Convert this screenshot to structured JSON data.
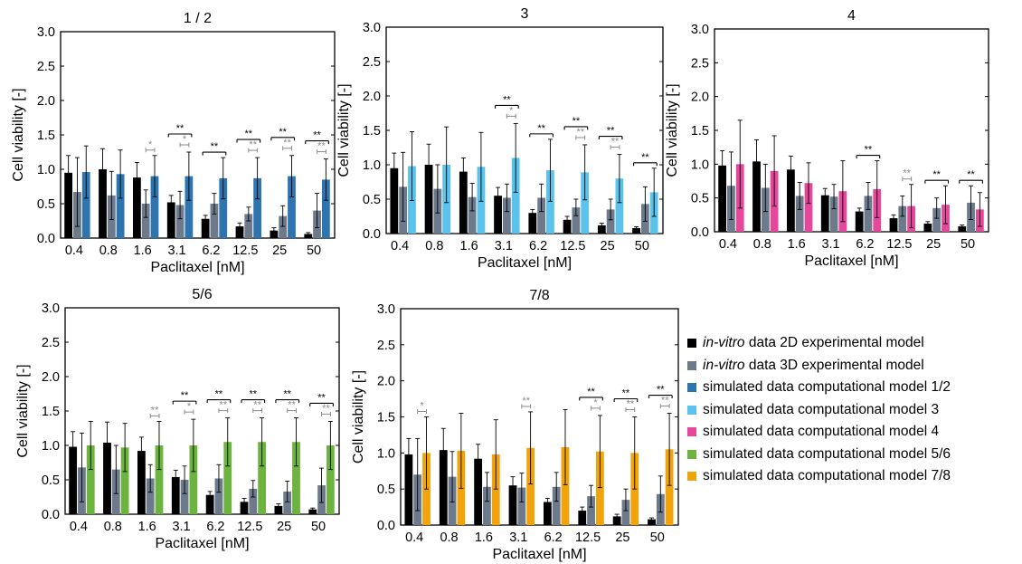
{
  "colors": {
    "vitro2d": "#000000",
    "vitro3d": "#6c7a8c",
    "model12": "#2e75b0",
    "model3": "#5bc2ec",
    "model4": "#e3489a",
    "model56": "#6db33f",
    "model78": "#f0a30a",
    "sig_gray": "#8a8a8a"
  },
  "legend": {
    "items": [
      {
        "em": "in-vitro",
        "text": " data 2D experimental model",
        "color": "#000000"
      },
      {
        "em": "in-vitro",
        "text": " data 3D experimental model",
        "color": "#6c7a8c"
      },
      {
        "em": "",
        "text": "simulated data computational model 1/2",
        "color": "#2e75b0"
      },
      {
        "em": "",
        "text": "simulated data computational model 3",
        "color": "#5bc2ec"
      },
      {
        "em": "",
        "text": "simulated data computational model  4",
        "color": "#e3489a"
      },
      {
        "em": "",
        "text": "simulated data computational model  5/6",
        "color": "#6db33f"
      },
      {
        "em": "",
        "text": "simulated data computational model  7/8",
        "color": "#f0a30a"
      }
    ]
  },
  "chart_data": [
    {
      "type": "bar",
      "title": "1 / 2",
      "xlabel": "Paclitaxel [nM]",
      "ylabel": "Cell viability [-]",
      "ylim": [
        0,
        3.0
      ],
      "yticks": [
        "0.0",
        "0.5",
        "1.0",
        "1.5",
        "2.0",
        "2.5",
        "3.0"
      ],
      "categories": [
        "0.4",
        "0.8",
        "1.6",
        "3.1",
        "6.2",
        "12.5",
        "25",
        "50"
      ],
      "model_color": "#2e75b0",
      "series": [
        {
          "name": "in-vitro data 2D experimental model",
          "values": [
            0.95,
            1.0,
            0.88,
            0.52,
            0.28,
            0.17,
            0.11,
            0.06
          ],
          "errors": [
            0.25,
            0.3,
            0.22,
            0.1,
            0.05,
            0.05,
            0.04,
            0.02
          ]
        },
        {
          "name": "in-vitro data 3D experimental model",
          "values": [
            0.67,
            0.62,
            0.5,
            0.48,
            0.5,
            0.35,
            0.32,
            0.4
          ],
          "errors": [
            0.5,
            0.35,
            0.2,
            0.2,
            0.15,
            0.1,
            0.15,
            0.25
          ]
        },
        {
          "name": "simulated data computational model 1/2",
          "values": [
            0.96,
            0.93,
            0.9,
            0.9,
            0.87,
            0.87,
            0.9,
            0.85
          ],
          "errors": [
            0.38,
            0.35,
            0.3,
            0.35,
            0.3,
            0.3,
            0.3,
            0.3
          ]
        }
      ],
      "annotations": [
        {
          "i": 2,
          "black": "",
          "gray": "*"
        },
        {
          "i": 3,
          "black": "**",
          "gray": "*"
        },
        {
          "i": 4,
          "black": "**",
          "gray": ""
        },
        {
          "i": 5,
          "black": "**",
          "gray": "**"
        },
        {
          "i": 6,
          "black": "**",
          "gray": "**"
        },
        {
          "i": 7,
          "black": "**",
          "gray": "**"
        }
      ]
    },
    {
      "type": "bar",
      "title": "3",
      "xlabel": "Paclitaxel [nM]",
      "ylabel": "Cell viability [-]",
      "ylim": [
        0,
        3.0
      ],
      "yticks": [
        "0.0",
        "0.5",
        "1.0",
        "1.5",
        "2.0",
        "2.5",
        "3.0"
      ],
      "categories": [
        "0.4",
        "0.8",
        "1.6",
        "3.1",
        "6.2",
        "12.5",
        "25",
        "50"
      ],
      "model_color": "#5bc2ec",
      "series": [
        {
          "name": "in-vitro data 2D experimental model",
          "values": [
            0.95,
            1.0,
            0.9,
            0.55,
            0.3,
            0.2,
            0.12,
            0.08
          ],
          "errors": [
            0.22,
            0.3,
            0.2,
            0.12,
            0.05,
            0.05,
            0.03,
            0.02
          ]
        },
        {
          "name": "in-vitro data 3D experimental model",
          "values": [
            0.68,
            0.65,
            0.53,
            0.52,
            0.52,
            0.38,
            0.35,
            0.43
          ],
          "errors": [
            0.5,
            0.35,
            0.2,
            0.2,
            0.2,
            0.12,
            0.15,
            0.25
          ]
        },
        {
          "name": "simulated data computational model 3",
          "values": [
            0.98,
            1.0,
            0.97,
            1.1,
            0.92,
            0.89,
            0.8,
            0.6
          ],
          "errors": [
            0.5,
            0.55,
            0.5,
            0.5,
            0.45,
            0.4,
            0.35,
            0.35
          ]
        }
      ],
      "annotations": [
        {
          "i": 3,
          "black": "**",
          "gray": "*"
        },
        {
          "i": 4,
          "black": "**",
          "gray": ""
        },
        {
          "i": 5,
          "black": "**",
          "gray": "**"
        },
        {
          "i": 6,
          "black": "**",
          "gray": "**"
        },
        {
          "i": 7,
          "black": "**",
          "gray": ""
        }
      ]
    },
    {
      "type": "bar",
      "title": "4",
      "xlabel": "Paclitaxel [nM]",
      "ylabel": "Cell viability [-]",
      "ylim": [
        0,
        3.0
      ],
      "yticks": [
        "0.0",
        "0.5",
        "1.0",
        "1.5",
        "2.0",
        "2.5",
        "3.0"
      ],
      "categories": [
        "0.4",
        "0.8",
        "1.6",
        "3.1",
        "6.2",
        "12.5",
        "25",
        "50"
      ],
      "model_color": "#e3489a",
      "series": [
        {
          "name": "in-vitro data 2D experimental model",
          "values": [
            0.98,
            1.04,
            0.92,
            0.54,
            0.3,
            0.2,
            0.12,
            0.08
          ],
          "errors": [
            0.22,
            0.32,
            0.2,
            0.1,
            0.05,
            0.05,
            0.03,
            0.02
          ]
        },
        {
          "name": "in-vitro data 3D experimental model",
          "values": [
            0.68,
            0.65,
            0.53,
            0.52,
            0.53,
            0.38,
            0.35,
            0.43
          ],
          "errors": [
            0.5,
            0.35,
            0.2,
            0.18,
            0.2,
            0.15,
            0.15,
            0.25
          ]
        },
        {
          "name": "simulated data computational model  4",
          "values": [
            1.0,
            0.9,
            0.72,
            0.6,
            0.63,
            0.38,
            0.4,
            0.33
          ],
          "errors": [
            0.65,
            0.52,
            0.3,
            0.45,
            0.42,
            0.32,
            0.28,
            0.25
          ]
        }
      ],
      "annotations": [
        {
          "i": 4,
          "black": "**",
          "gray": ""
        },
        {
          "i": 5,
          "black": "",
          "gray": "**"
        },
        {
          "i": 6,
          "black": "**",
          "gray": ""
        },
        {
          "i": 7,
          "black": "**",
          "gray": ""
        }
      ]
    },
    {
      "type": "bar",
      "title": "5/6",
      "xlabel": "Paclitaxel [nM]",
      "ylabel": "Cell viability [-]",
      "ylim": [
        0,
        3.0
      ],
      "yticks": [
        "0.0",
        "0.5",
        "1.0",
        "1.5",
        "2.0",
        "2.5",
        "3.0"
      ],
      "categories": [
        "0.4",
        "0.8",
        "1.6",
        "3.1",
        "6.2",
        "12.5",
        "25",
        "50"
      ],
      "model_color": "#6db33f",
      "series": [
        {
          "name": "in-vitro data 2D experimental model",
          "values": [
            0.98,
            1.04,
            0.92,
            0.54,
            0.28,
            0.18,
            0.12,
            0.07
          ],
          "errors": [
            0.22,
            0.3,
            0.2,
            0.1,
            0.05,
            0.05,
            0.03,
            0.02
          ]
        },
        {
          "name": "in-vitro data 3D experimental model",
          "values": [
            0.68,
            0.65,
            0.52,
            0.5,
            0.52,
            0.37,
            0.33,
            0.42
          ],
          "errors": [
            0.5,
            0.35,
            0.2,
            0.2,
            0.2,
            0.12,
            0.15,
            0.25
          ]
        },
        {
          "name": "simulated data computational model  5/6",
          "values": [
            1.0,
            0.97,
            1.0,
            1.0,
            1.05,
            1.05,
            1.05,
            1.0
          ],
          "errors": [
            0.35,
            0.35,
            0.35,
            0.38,
            0.35,
            0.35,
            0.35,
            0.35
          ]
        }
      ],
      "annotations": [
        {
          "i": 2,
          "black": "",
          "gray": "**"
        },
        {
          "i": 3,
          "black": "**",
          "gray": "*"
        },
        {
          "i": 4,
          "black": "**",
          "gray": "**"
        },
        {
          "i": 5,
          "black": "**",
          "gray": "**"
        },
        {
          "i": 6,
          "black": "**",
          "gray": "**"
        },
        {
          "i": 7,
          "black": "**",
          "gray": "**"
        }
      ]
    },
    {
      "type": "bar",
      "title": "7/8",
      "xlabel": "Paclitaxel [nM]",
      "ylabel": "Cell viability [-]",
      "ylim": [
        0,
        3.0
      ],
      "yticks": [
        "0.0",
        "0.5",
        "1.0",
        "1.5",
        "2.0",
        "2.5",
        "3.0"
      ],
      "categories": [
        "0.4",
        "0.8",
        "1.6",
        "3.1",
        "6.2",
        "12.5",
        "25",
        "50"
      ],
      "model_color": "#f0a30a",
      "series": [
        {
          "name": "in-vitro data 2D experimental model",
          "values": [
            0.98,
            1.04,
            0.92,
            0.55,
            0.32,
            0.2,
            0.12,
            0.08
          ],
          "errors": [
            0.22,
            0.3,
            0.2,
            0.12,
            0.05,
            0.05,
            0.03,
            0.02
          ]
        },
        {
          "name": "in-vitro data 3D experimental model",
          "values": [
            0.7,
            0.67,
            0.53,
            0.52,
            0.53,
            0.4,
            0.35,
            0.43
          ],
          "errors": [
            0.5,
            0.35,
            0.2,
            0.2,
            0.2,
            0.15,
            0.15,
            0.25
          ]
        },
        {
          "name": "simulated data computational model  7/8",
          "values": [
            1.0,
            1.03,
            0.98,
            1.07,
            1.08,
            1.02,
            1.0,
            1.05
          ],
          "errors": [
            0.5,
            0.52,
            0.48,
            0.5,
            0.52,
            0.5,
            0.5,
            0.5
          ]
        }
      ],
      "annotations": [
        {
          "i": 0,
          "black": "",
          "gray": "*"
        },
        {
          "i": 3,
          "black": "",
          "gray": "**"
        },
        {
          "i": 5,
          "black": "**",
          "gray": "*"
        },
        {
          "i": 6,
          "black": "**",
          "gray": "**"
        },
        {
          "i": 7,
          "black": "**",
          "gray": "**"
        }
      ]
    }
  ]
}
